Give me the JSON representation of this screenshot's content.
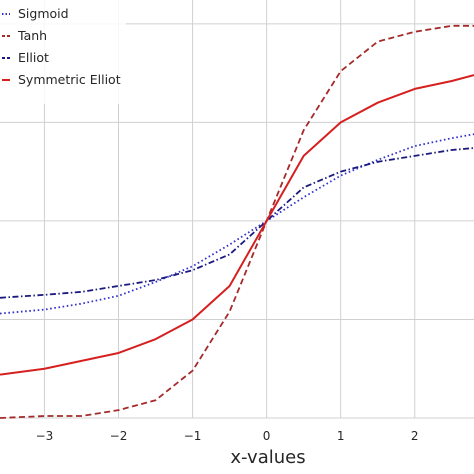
{
  "chart_data": {
    "type": "line",
    "title": "",
    "xlabel": "x-values",
    "ylabel": "",
    "xlim": [
      -3.6,
      2.8
    ],
    "ylim": [
      -1.0,
      1.05
    ],
    "x_ticks": [
      -3,
      -2,
      -1,
      0,
      1,
      2
    ],
    "x_tick_labels": [
      "−3",
      "−2",
      "−1",
      "0",
      "1",
      "2"
    ],
    "y_grid": [
      -1.0,
      -0.5,
      0.0,
      0.5,
      1.0
    ],
    "grid": true,
    "legend_position": "top-left",
    "series": [
      {
        "name": "Sigmoid",
        "color": "#3333cc",
        "dash": "dotted",
        "x": [
          -3.6,
          -3,
          -2.5,
          -2,
          -1.5,
          -1,
          -0.5,
          0,
          0.5,
          1,
          1.5,
          2,
          2.5,
          2.8
        ],
        "y": [
          -0.47,
          -0.45,
          -0.42,
          -0.38,
          -0.31,
          -0.23,
          -0.12,
          0.0,
          0.12,
          0.23,
          0.31,
          0.38,
          0.42,
          0.44
        ]
      },
      {
        "name": "Tanh",
        "color": "#a52a2a",
        "dash": "dashed",
        "x": [
          -3.6,
          -3,
          -2.5,
          -2,
          -1.5,
          -1,
          -0.5,
          0,
          0.5,
          1,
          1.5,
          2,
          2.5,
          2.8
        ],
        "y": [
          -1.0,
          -0.99,
          -0.99,
          -0.96,
          -0.91,
          -0.76,
          -0.46,
          0.0,
          0.46,
          0.76,
          0.91,
          0.96,
          0.99,
          0.99
        ]
      },
      {
        "name": "Elliot",
        "color": "#1a1a80",
        "dash": "dashdot",
        "x": [
          -3.6,
          -3,
          -2.5,
          -2,
          -1.5,
          -1,
          -0.5,
          0,
          0.5,
          1,
          1.5,
          2,
          2.5,
          2.8
        ],
        "y": [
          -0.39,
          -0.375,
          -0.36,
          -0.33,
          -0.3,
          -0.25,
          -0.17,
          0.0,
          0.17,
          0.25,
          0.3,
          0.33,
          0.36,
          0.37
        ]
      },
      {
        "name": "Symmetric Elliot",
        "color": "#d62020",
        "dash": "solid",
        "x": [
          -3.6,
          -3,
          -2.5,
          -2,
          -1.5,
          -1,
          -0.5,
          0,
          0.5,
          1,
          1.5,
          2,
          2.5,
          2.8
        ],
        "y": [
          -0.78,
          -0.75,
          -0.71,
          -0.67,
          -0.6,
          -0.5,
          -0.33,
          0.0,
          0.33,
          0.5,
          0.6,
          0.67,
          0.71,
          0.74
        ]
      }
    ]
  }
}
